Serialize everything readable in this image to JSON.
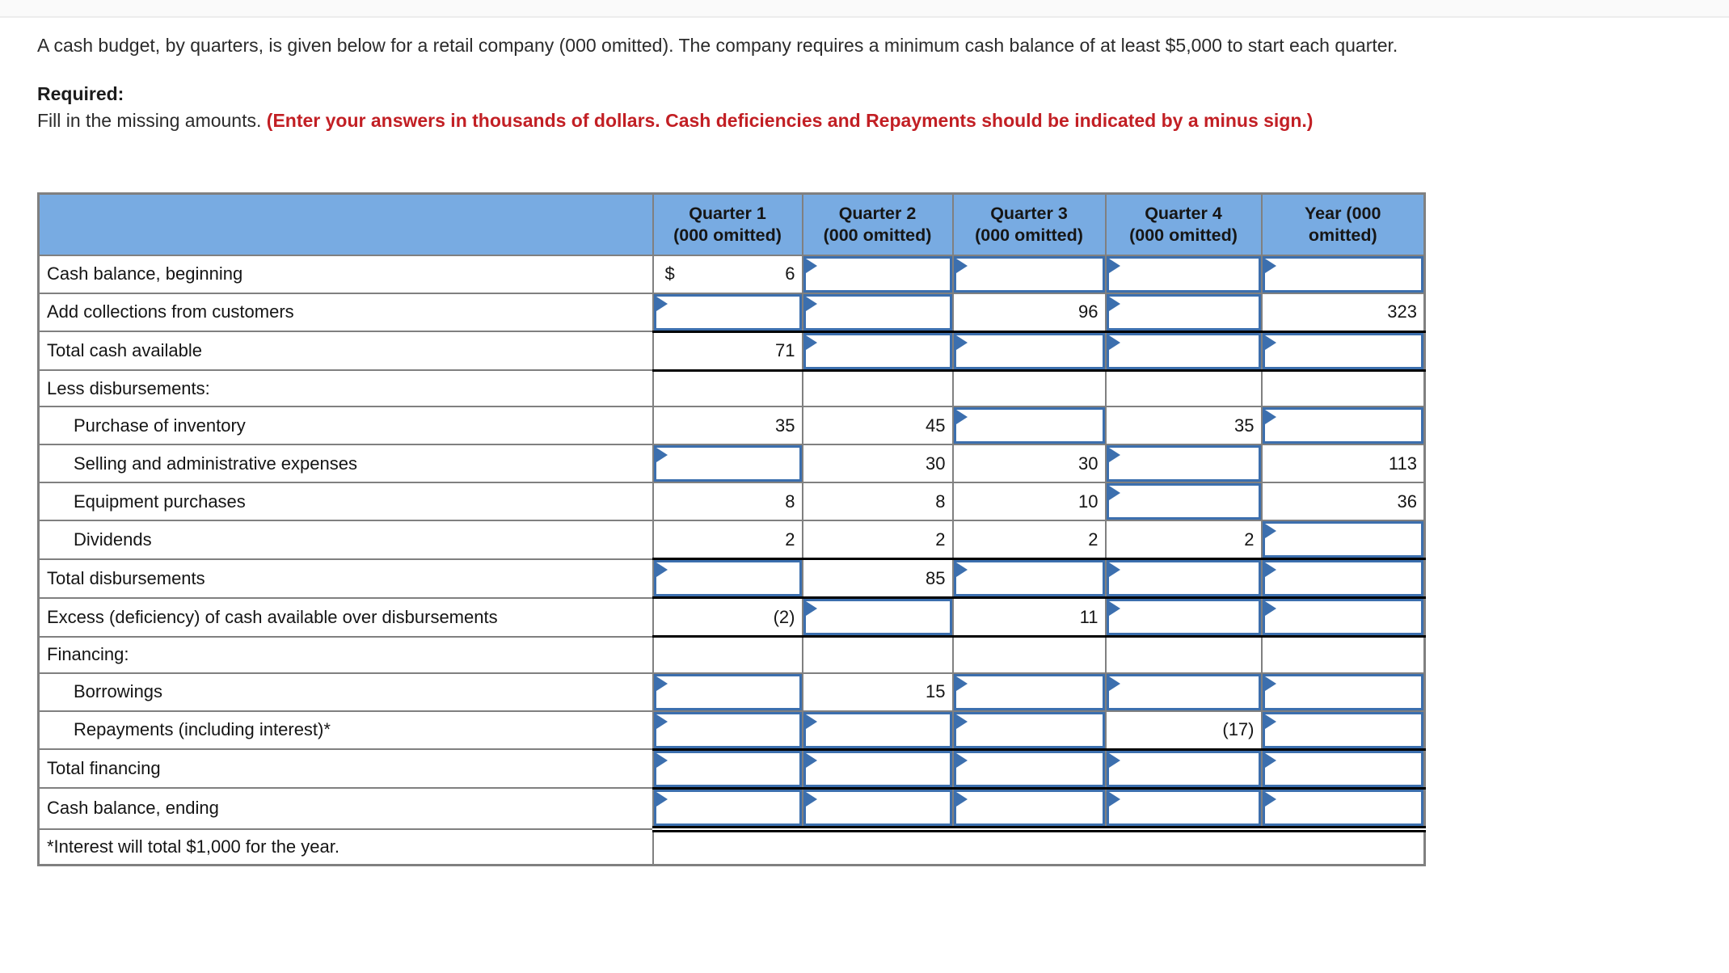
{
  "instructions": {
    "intro": "A cash budget, by quarters, is given below for a retail company (000 omitted). The company requires a minimum cash balance of at least $5,000 to start each quarter.",
    "required_label": "Required:",
    "required_text": "Fill in the missing amounts. ",
    "required_emphasis": "(Enter your answers in thousands of dollars. Cash deficiencies and Repayments should be indicated by a minus sign.)"
  },
  "colors": {
    "header_bg": "#78abe2",
    "input_border": "#3c6fae",
    "grid_line": "#808080",
    "total_rule": "#000000",
    "emphasis_red": "#c21f24"
  },
  "icons": {
    "entry_flag": "entry-flag-icon"
  },
  "table": {
    "columns": [
      {
        "line1": "Quarter 1",
        "line2": "(000 omitted)"
      },
      {
        "line1": "Quarter 2",
        "line2": "(000 omitted)"
      },
      {
        "line1": "Quarter 3",
        "line2": "(000 omitted)"
      },
      {
        "line1": "Quarter 4",
        "line2": "(000 omitted)"
      },
      {
        "line1": "Year (000",
        "line2": "omitted)"
      }
    ],
    "rows": [
      {
        "label": "Cash balance, beginning",
        "cells": [
          {
            "t": "s",
            "v": "6",
            "p": "$"
          },
          {
            "t": "i"
          },
          {
            "t": "i"
          },
          {
            "t": "i"
          },
          {
            "t": "i"
          }
        ]
      },
      {
        "label": "Add collections from customers",
        "cells": [
          {
            "t": "i"
          },
          {
            "t": "i"
          },
          {
            "t": "s",
            "v": "96"
          },
          {
            "t": "i"
          },
          {
            "t": "s",
            "v": "323"
          }
        ]
      },
      {
        "label": "Total cash available",
        "rule": "tb",
        "cells": [
          {
            "t": "s",
            "v": "71"
          },
          {
            "t": "i"
          },
          {
            "t": "i"
          },
          {
            "t": "i"
          },
          {
            "t": "i"
          }
        ]
      },
      {
        "label": "Less disbursements:",
        "cells": [
          {
            "t": "b"
          },
          {
            "t": "b"
          },
          {
            "t": "b"
          },
          {
            "t": "b"
          },
          {
            "t": "b"
          }
        ]
      },
      {
        "label": "Purchase of inventory",
        "indent": true,
        "cells": [
          {
            "t": "s",
            "v": "35"
          },
          {
            "t": "s",
            "v": "45"
          },
          {
            "t": "i"
          },
          {
            "t": "s",
            "v": "35"
          },
          {
            "t": "i"
          }
        ]
      },
      {
        "label": "Selling and administrative expenses",
        "indent": true,
        "cells": [
          {
            "t": "i"
          },
          {
            "t": "s",
            "v": "30"
          },
          {
            "t": "s",
            "v": "30"
          },
          {
            "t": "i"
          },
          {
            "t": "s",
            "v": "113"
          }
        ]
      },
      {
        "label": "Equipment purchases",
        "indent": true,
        "cells": [
          {
            "t": "s",
            "v": "8"
          },
          {
            "t": "s",
            "v": "8"
          },
          {
            "t": "s",
            "v": "10"
          },
          {
            "t": "i"
          },
          {
            "t": "s",
            "v": "36"
          }
        ]
      },
      {
        "label": "Dividends",
        "indent": true,
        "cells": [
          {
            "t": "s",
            "v": "2"
          },
          {
            "t": "s",
            "v": "2"
          },
          {
            "t": "s",
            "v": "2"
          },
          {
            "t": "s",
            "v": "2"
          },
          {
            "t": "i"
          }
        ]
      },
      {
        "label": "Total disbursements",
        "rule": "tb",
        "cells": [
          {
            "t": "i"
          },
          {
            "t": "s",
            "v": "85"
          },
          {
            "t": "i"
          },
          {
            "t": "i"
          },
          {
            "t": "i"
          }
        ]
      },
      {
        "label": "Excess (deficiency) of cash available over disbursements",
        "rule": "b",
        "cells": [
          {
            "t": "s",
            "v": "(2)"
          },
          {
            "t": "i"
          },
          {
            "t": "s",
            "v": "11"
          },
          {
            "t": "i"
          },
          {
            "t": "i"
          }
        ]
      },
      {
        "label": "Financing:",
        "cells": [
          {
            "t": "b"
          },
          {
            "t": "b"
          },
          {
            "t": "b"
          },
          {
            "t": "b"
          },
          {
            "t": "b"
          }
        ]
      },
      {
        "label": "Borrowings",
        "indent": true,
        "cells": [
          {
            "t": "i"
          },
          {
            "t": "s",
            "v": "15"
          },
          {
            "t": "i"
          },
          {
            "t": "i"
          },
          {
            "t": "i"
          }
        ]
      },
      {
        "label": "Repayments (including interest)*",
        "indent": true,
        "cells": [
          {
            "t": "i"
          },
          {
            "t": "i"
          },
          {
            "t": "i"
          },
          {
            "t": "s",
            "v": "(17)"
          },
          {
            "t": "i"
          }
        ]
      },
      {
        "label": "Total financing",
        "rule": "tb",
        "cells": [
          {
            "t": "i"
          },
          {
            "t": "i"
          },
          {
            "t": "i"
          },
          {
            "t": "i"
          },
          {
            "t": "i"
          }
        ]
      },
      {
        "label": "Cash balance, ending",
        "rule": "db",
        "cells": [
          {
            "t": "i"
          },
          {
            "t": "i"
          },
          {
            "t": "i"
          },
          {
            "t": "i"
          },
          {
            "t": "i"
          }
        ]
      },
      {
        "label": "*Interest will total $1,000 for the year.",
        "footnote": true
      }
    ]
  }
}
